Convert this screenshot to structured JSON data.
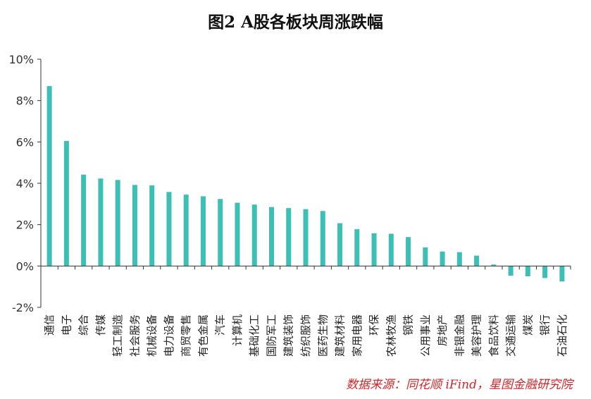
{
  "title": "图2  A股各板块周涨跌幅",
  "source": "数据来源：同花顺 iFind，星图金融研究院",
  "colors": {
    "bar": "#3cbfb4",
    "axis": "#333333",
    "source": "#d4252a"
  },
  "chart_data": {
    "type": "bar",
    "title": "图2  A股各板块周涨跌幅",
    "xlabel": "",
    "ylabel": "",
    "ylim": [
      -2,
      10
    ],
    "yticks": [
      -2,
      0,
      2,
      4,
      6,
      8,
      10
    ],
    "ytick_labels": [
      "-2%",
      "0%",
      "2%",
      "4%",
      "6%",
      "8%",
      "10%"
    ],
    "grid": false,
    "legend": "none",
    "categories": [
      "通信",
      "电子",
      "综合",
      "传媒",
      "轻工制造",
      "社会服务",
      "机械设备",
      "电力设备",
      "商贸零售",
      "有色金属",
      "汽车",
      "计算机",
      "基础化工",
      "国防军工",
      "建筑装饰",
      "纺织服饰",
      "医药生物",
      "建筑材料",
      "家用电器",
      "环保",
      "农林牧渔",
      "钢铁",
      "公用事业",
      "房地产",
      "非银金融",
      "美容护理",
      "食品饮料",
      "交通运输",
      "煤炭",
      "银行",
      "石油石化"
    ],
    "values": [
      8.7,
      6.05,
      4.42,
      4.23,
      4.16,
      3.92,
      3.9,
      3.58,
      3.45,
      3.37,
      3.24,
      3.06,
      2.97,
      2.85,
      2.8,
      2.75,
      2.66,
      2.07,
      1.78,
      1.58,
      1.56,
      1.4,
      0.9,
      0.7,
      0.67,
      0.5,
      0.07,
      -0.47,
      -0.5,
      -0.58,
      -0.75
    ]
  }
}
